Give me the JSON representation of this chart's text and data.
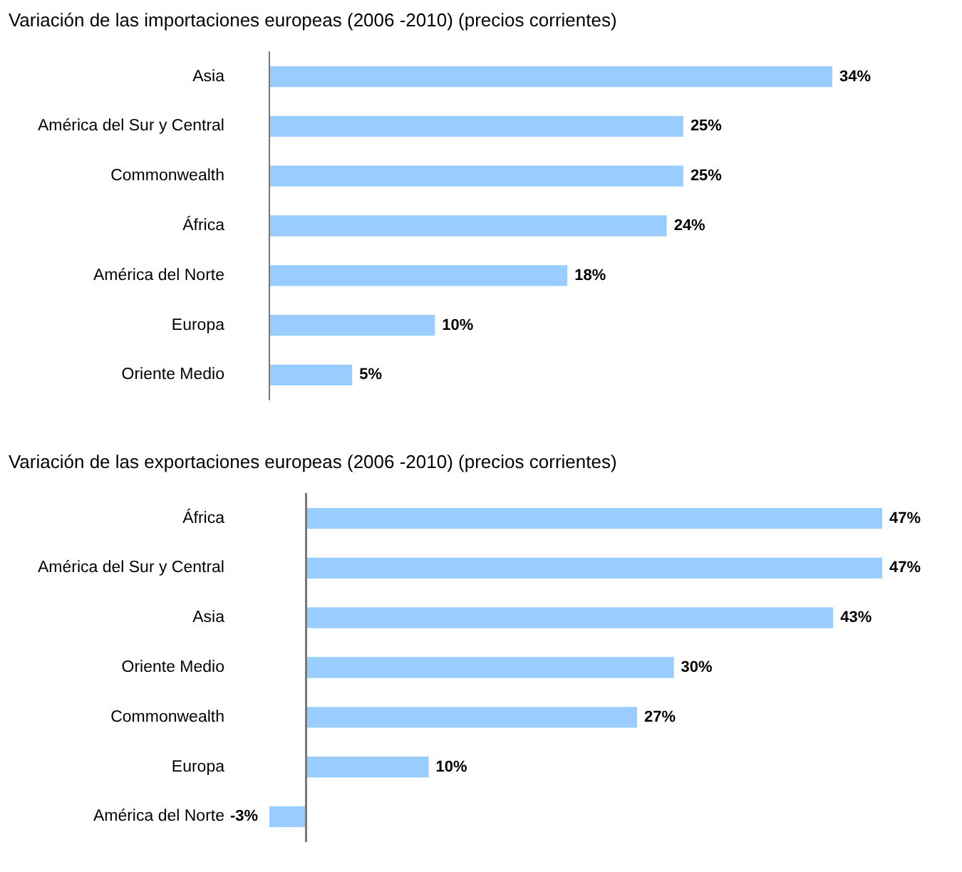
{
  "chart_data": [
    {
      "type": "bar",
      "orientation": "horizontal",
      "title": "Variación de las importaciones europeas (2006 -2010) (precios corrientes)",
      "categories": [
        "Asia",
        "América del Sur y Central",
        "Commonwealth",
        "África",
        "América del Norte",
        "Europa",
        "Oriente Medio"
      ],
      "values": [
        34,
        25,
        25,
        24,
        18,
        10,
        5
      ],
      "value_labels": [
        "34%",
        "25%",
        "25%",
        "24%",
        "18%",
        "10%",
        "5%"
      ],
      "color": "#99ccff"
    },
    {
      "type": "bar",
      "orientation": "horizontal",
      "title": "Variación de las exportaciones europeas (2006 -2010) (precios corrientes)",
      "categories": [
        "África",
        "América del Sur y Central",
        "Asia",
        "Oriente Medio",
        "Commonwealth",
        "Europa",
        "América del Norte"
      ],
      "values": [
        47,
        47,
        43,
        30,
        27,
        10,
        -3
      ],
      "value_labels": [
        "47%",
        "47%",
        "43%",
        "30%",
        "27%",
        "10%",
        "-3%"
      ],
      "color": "#99ccff"
    }
  ]
}
